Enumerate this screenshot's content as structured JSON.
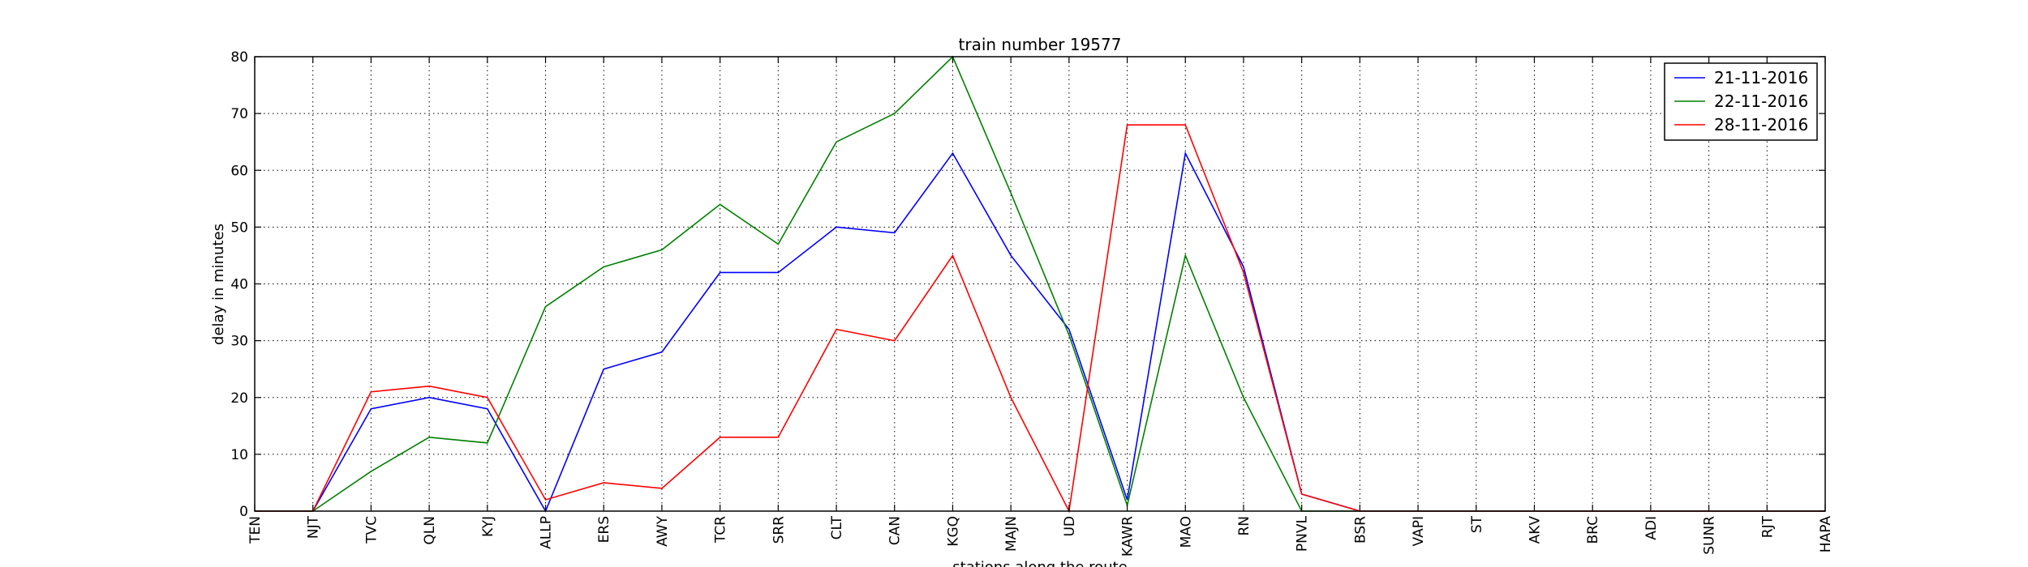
{
  "chart_data": {
    "type": "line",
    "title": "train number 19577",
    "xlabel": "stations along the route",
    "ylabel": "delay in minutes",
    "ylim": [
      0,
      80
    ],
    "yticks": [
      0,
      10,
      20,
      30,
      40,
      50,
      60,
      70,
      80
    ],
    "grid": true,
    "legend_position": "top-right",
    "categories": [
      "TEN",
      "NJT",
      "TVC",
      "QLN",
      "KYJ",
      "ALLP",
      "ERS",
      "AWY",
      "TCR",
      "SRR",
      "CLT",
      "CAN",
      "KGQ",
      "MAJN",
      "UD",
      "KAWR",
      "MAO",
      "RN",
      "PNVL",
      "BSR",
      "VAPI",
      "ST",
      "AKV",
      "BRC",
      "ADI",
      "SUNR",
      "RJT",
      "HAPA"
    ],
    "series": [
      {
        "name": "21-11-2016",
        "color": "#0000ff",
        "values": [
          0,
          0,
          18,
          20,
          18,
          0,
          25,
          28,
          42,
          42,
          50,
          49,
          63,
          45,
          32,
          2,
          63,
          43,
          3,
          0,
          0,
          0,
          0,
          0,
          0,
          0,
          0,
          0
        ]
      },
      {
        "name": "22-11-2016",
        "color": "#008000",
        "values": [
          0,
          0,
          7,
          13,
          12,
          36,
          43,
          46,
          54,
          47,
          65,
          70,
          80,
          56,
          31,
          1,
          45,
          20,
          0,
          0,
          0,
          0,
          0,
          0,
          0,
          0,
          0,
          0
        ]
      },
      {
        "name": "28-11-2016",
        "color": "#ff0000",
        "values": [
          0,
          0,
          21,
          22,
          20,
          2,
          5,
          4,
          13,
          13,
          32,
          30,
          45,
          20,
          0,
          68,
          68,
          42,
          3,
          0,
          0,
          0,
          0,
          0,
          0,
          0,
          0,
          0
        ]
      }
    ]
  }
}
